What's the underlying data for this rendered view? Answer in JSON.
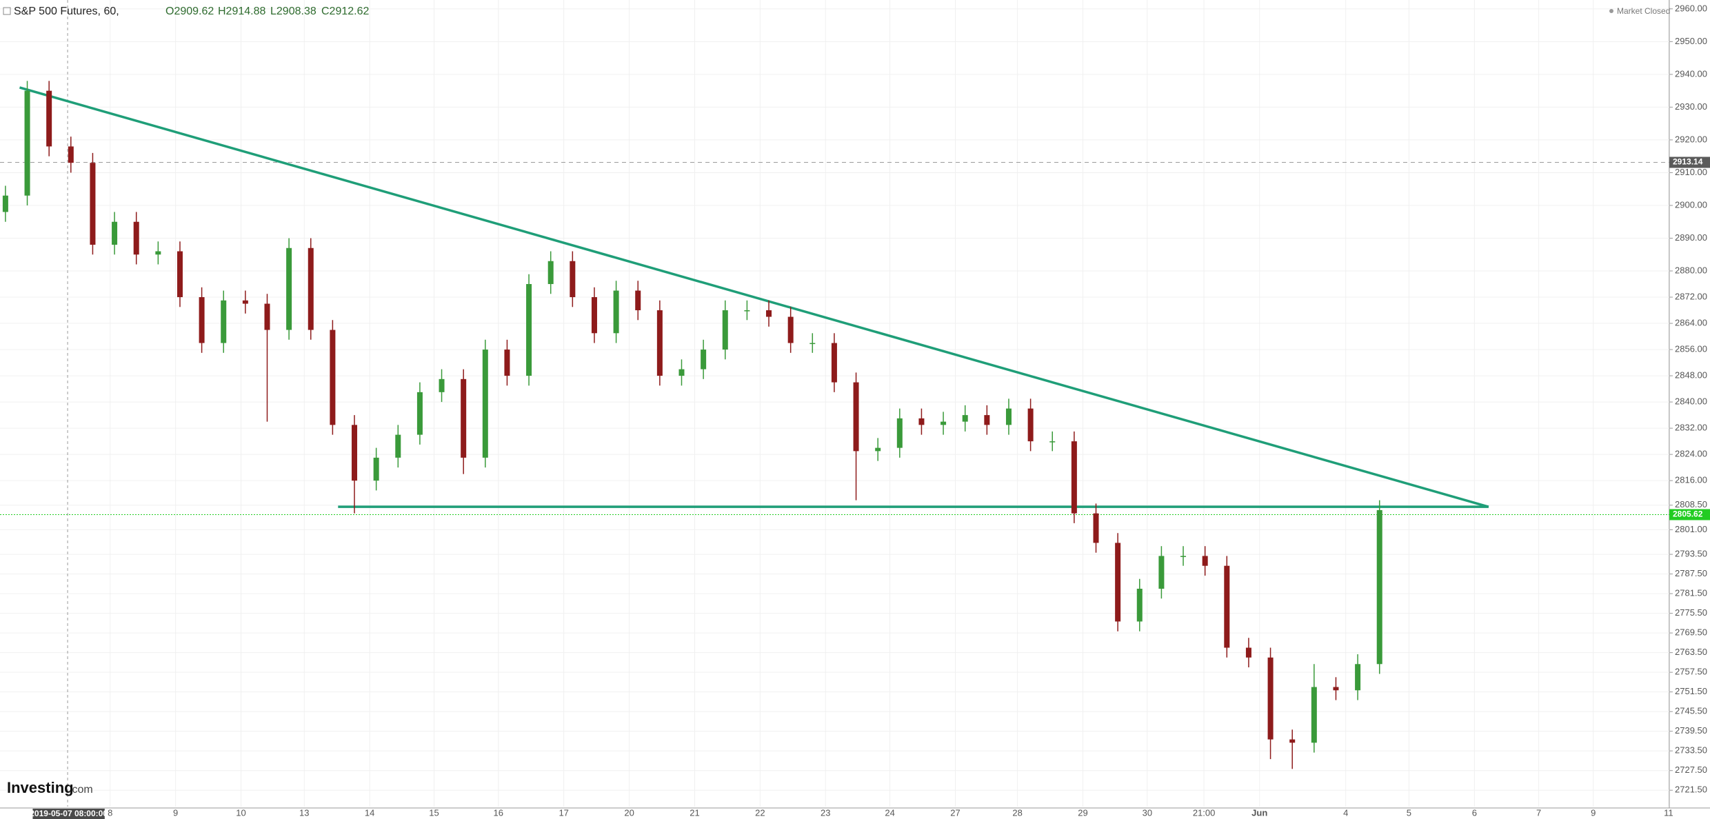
{
  "chart_data": {
    "type": "candlestick",
    "header": {
      "symbol": "S&P 500 Futures, 60,",
      "open": "O2909.62",
      "high": "H2914.88",
      "low": "L2908.38",
      "close": "C2912.62",
      "status": "Market Closed"
    },
    "logo": "Investing",
    "logo_suffix": ".com",
    "crosshair_label": "2019-05-07 08:00:00",
    "up_color": "#3a9a3a",
    "down_color": "#8e1b1b",
    "line_color": "#1f9e78",
    "open": [
      2898,
      2903,
      2935,
      2918,
      2913,
      2888,
      2895,
      2885,
      2886,
      2872,
      2858,
      2871,
      2870,
      2862,
      2887,
      2862,
      2833,
      2816,
      2823,
      2830,
      2843,
      2847,
      2823,
      2856,
      2848,
      2876,
      2883,
      2872,
      2861,
      2874,
      2868,
      2848,
      2850,
      2856,
      2868,
      2868,
      2866,
      2858,
      2858,
      2846,
      2825,
      2826,
      2835,
      2833,
      2834,
      2836,
      2833,
      2838,
      2828,
      2828,
      2806,
      2797,
      2773,
      2783,
      2793,
      2793,
      2790,
      2765,
      2762,
      2737,
      2736,
      2753,
      2752,
      2760
    ],
    "high": [
      2906,
      2938,
      2938,
      2921,
      2916,
      2898,
      2898,
      2889,
      2889,
      2875,
      2874,
      2874,
      2873,
      2890,
      2890,
      2865,
      2836,
      2826,
      2833,
      2846,
      2850,
      2850,
      2859,
      2859,
      2879,
      2886,
      2886,
      2875,
      2877,
      2877,
      2871,
      2853,
      2859,
      2871,
      2871,
      2871,
      2869,
      2861,
      2861,
      2849,
      2829,
      2838,
      2838,
      2837,
      2839,
      2839,
      2841,
      2841,
      2831,
      2831,
      2809,
      2800,
      2786,
      2796,
      2796,
      2796,
      2793,
      2768,
      2765,
      2740,
      2760,
      2756,
      2763,
      2810
    ],
    "low": [
      2895,
      2900,
      2915,
      2910,
      2885,
      2885,
      2882,
      2882,
      2869,
      2855,
      2855,
      2867,
      2834,
      2859,
      2859,
      2830,
      2806,
      2813,
      2820,
      2827,
      2840,
      2818,
      2820,
      2845,
      2845,
      2873,
      2869,
      2858,
      2858,
      2865,
      2845,
      2845,
      2847,
      2853,
      2865,
      2863,
      2855,
      2855,
      2843,
      2810,
      2822,
      2823,
      2830,
      2830,
      2831,
      2830,
      2830,
      2825,
      2825,
      2803,
      2794,
      2770,
      2770,
      2780,
      2790,
      2787,
      2762,
      2759,
      2731,
      2728,
      2733,
      2749,
      2749,
      2757
    ],
    "close": [
      2903,
      2935,
      2918,
      2913,
      2888,
      2895,
      2885,
      2886,
      2872,
      2858,
      2871,
      2870,
      2862,
      2887,
      2862,
      2833,
      2816,
      2823,
      2830,
      2843,
      2847,
      2823,
      2856,
      2848,
      2876,
      2883,
      2872,
      2861,
      2874,
      2868,
      2848,
      2850,
      2856,
      2868,
      2868,
      2866,
      2858,
      2858,
      2846,
      2825,
      2826,
      2835,
      2833,
      2834,
      2836,
      2833,
      2838,
      2828,
      2828,
      2806,
      2797,
      2773,
      2783,
      2793,
      2793,
      2790,
      2765,
      2762,
      2737,
      2736,
      2753,
      2752,
      2760,
      2807
    ],
    "trendlines": [
      {
        "start": 2936,
        "end": 2808
      },
      {
        "start": 2808,
        "end": 2808
      }
    ],
    "price_lines": [
      {
        "value": 2913.14,
        "color": "#9a9a9a"
      },
      {
        "value": 2805.62,
        "color": "#22cc22"
      }
    ],
    "ylim": [
      2716.5,
      2962.7
    ],
    "yticks": [
      {
        "value": 2960,
        "label": "2960.00"
      },
      {
        "value": 2950,
        "label": "2950.00"
      },
      {
        "value": 2940,
        "label": "2940.00"
      },
      {
        "value": 2930,
        "label": "2930.00"
      },
      {
        "value": 2920,
        "label": "2920.00"
      },
      {
        "value": 2910,
        "label": "2910.00"
      },
      {
        "value": 2900,
        "label": "2900.00"
      },
      {
        "value": 2890,
        "label": "2890.00"
      },
      {
        "value": 2880,
        "label": "2880.00"
      },
      {
        "value": 2872,
        "label": "2872.00"
      },
      {
        "value": 2864,
        "label": "2864.00"
      },
      {
        "value": 2856,
        "label": "2856.00"
      },
      {
        "value": 2848,
        "label": "2848.00"
      },
      {
        "value": 2840,
        "label": "2840.00"
      },
      {
        "value": 2832,
        "label": "2832.00"
      },
      {
        "value": 2824,
        "label": "2824.00"
      },
      {
        "value": 2816,
        "label": "2816.00"
      },
      {
        "value": 2808.5,
        "label": "2808.50"
      },
      {
        "value": 2801,
        "label": "2801.00"
      },
      {
        "value": 2793.5,
        "label": "2793.50"
      },
      {
        "value": 2787.5,
        "label": "2787.50"
      },
      {
        "value": 2781.5,
        "label": "2781.50"
      },
      {
        "value": 2775.5,
        "label": "2775.50"
      },
      {
        "value": 2769.5,
        "label": "2769.50"
      },
      {
        "value": 2763.5,
        "label": "2763.50"
      },
      {
        "value": 2757.5,
        "label": "2757.50"
      },
      {
        "value": 2751.5,
        "label": "2751.50"
      },
      {
        "value": 2745.5,
        "label": "2745.50"
      },
      {
        "value": 2739.5,
        "label": "2739.50"
      },
      {
        "value": 2733.5,
        "label": "2733.50"
      },
      {
        "value": 2727.5,
        "label": "2727.50"
      },
      {
        "value": 2721.5,
        "label": "2721.50"
      }
    ],
    "x_labels": [
      "8",
      "9",
      "10",
      "13",
      "14",
      "15",
      "16",
      "17",
      "20",
      "21",
      "22",
      "23",
      "24",
      "27",
      "28",
      "29",
      "30",
      "21:00",
      "Jun",
      "4",
      "5",
      "6",
      "7",
      "9",
      "11"
    ],
    "grid": true
  }
}
